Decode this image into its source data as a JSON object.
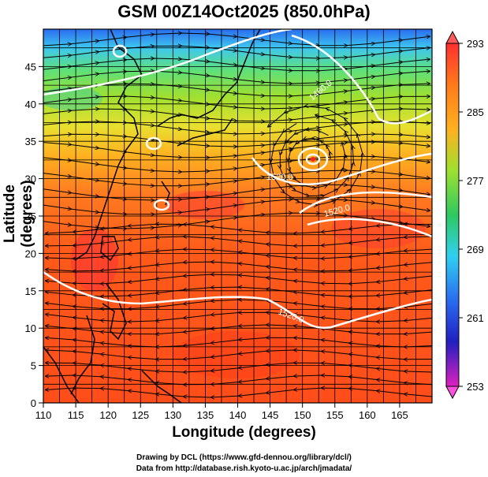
{
  "title": "GSM 00Z14Oct2025 (850.0hPa)",
  "xlabel": "Longitude (degrees)",
  "ylabel": "Latitude  (degrees)",
  "credits": [
    "Drawing by DCL (https://www.gfd-dennou.org/library/dcl/)",
    "Data from http://database.rish.kyoto-u.ac.jp/arch/jmadata/"
  ],
  "map": {
    "lon_range": [
      110,
      170
    ],
    "lat_range": [
      0,
      50
    ],
    "lon_ticks": [
      "110",
      "115",
      "120",
      "125",
      "130",
      "135",
      "140",
      "145",
      "150",
      "155",
      "160",
      "165"
    ],
    "lat_ticks": [
      "0",
      "5",
      "10",
      "15",
      "20",
      "25",
      "30",
      "35",
      "40",
      "45"
    ],
    "colorbar": {
      "range": [
        253,
        293
      ],
      "labels": [
        "293",
        "285",
        "277",
        "269",
        "261",
        "253"
      ]
    },
    "contour_labels": [
      "1480.0",
      "1520.0",
      "1520.0",
      "1520.0"
    ],
    "colors": {
      "warm": "#ff4d1a",
      "cool": "#3ec8f0",
      "contour": "#ffffff"
    }
  }
}
